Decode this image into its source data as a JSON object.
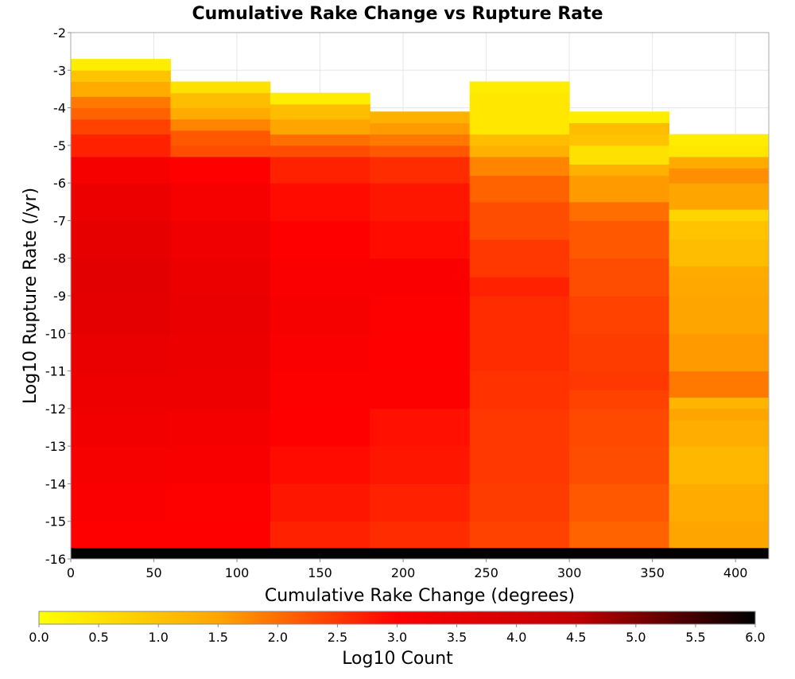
{
  "chart_data": {
    "type": "heatmap",
    "title": "Cumulative Rake Change vs Rupture Rate",
    "xlabel": "Cumulative Rake Change (degrees)",
    "ylabel": "Log10 Rupture Rate (/yr)",
    "xlim": [
      0,
      420
    ],
    "ylim": [
      -16,
      -2
    ],
    "x_ticks": [
      "0",
      "50",
      "100",
      "150",
      "200",
      "250",
      "300",
      "350",
      "400"
    ],
    "y_ticks": [
      "-2",
      "-3",
      "-4",
      "-5",
      "-6",
      "-7",
      "-8",
      "-9",
      "-10",
      "-11",
      "-12",
      "-13",
      "-14",
      "-15",
      "-16"
    ],
    "grid": true,
    "x_bin_width": 60,
    "y_bin_height": 0.3,
    "columns": [
      {
        "x_start": 0,
        "cells": [
          [
            -16.0,
            6.0
          ],
          [
            -15.7,
            3.0
          ],
          [
            -15.0,
            3.1
          ],
          [
            -14.0,
            3.2
          ],
          [
            -13.0,
            3.3
          ],
          [
            -12.0,
            3.4
          ],
          [
            -11.0,
            3.5
          ],
          [
            -10.0,
            3.65
          ],
          [
            -9.0,
            3.7
          ],
          [
            -8.0,
            3.6
          ],
          [
            -7.0,
            3.45
          ],
          [
            -6.0,
            3.2
          ],
          [
            -5.3,
            2.7
          ],
          [
            -4.7,
            2.4
          ],
          [
            -4.3,
            2.1
          ],
          [
            -4.0,
            1.9
          ],
          [
            -3.7,
            1.4
          ],
          [
            -3.3,
            1.0
          ],
          [
            -3.0,
            0.3
          ]
        ]
      },
      {
        "x_start": 60,
        "cells": [
          [
            -16.0,
            6.0
          ],
          [
            -15.7,
            3.0
          ],
          [
            -15.0,
            3.05
          ],
          [
            -14.0,
            3.15
          ],
          [
            -13.0,
            3.25
          ],
          [
            -12.0,
            3.4
          ],
          [
            -11.0,
            3.45
          ],
          [
            -10.0,
            3.5
          ],
          [
            -9.0,
            3.45
          ],
          [
            -8.0,
            3.35
          ],
          [
            -7.0,
            3.2
          ],
          [
            -6.0,
            3.0
          ],
          [
            -5.3,
            2.3
          ],
          [
            -5.0,
            2.2
          ],
          [
            -4.6,
            1.8
          ],
          [
            -4.3,
            1.4
          ],
          [
            -4.0,
            1.1
          ],
          [
            -3.6,
            0.5
          ]
        ]
      },
      {
        "x_start": 120,
        "cells": [
          [
            -16.0,
            6.0
          ],
          [
            -15.7,
            2.7
          ],
          [
            -15.0,
            2.8
          ],
          [
            -14.0,
            2.9
          ],
          [
            -13.0,
            3.0
          ],
          [
            -12.0,
            3.05
          ],
          [
            -11.0,
            3.1
          ],
          [
            -10.0,
            3.2
          ],
          [
            -9.0,
            3.1
          ],
          [
            -8.0,
            3.0
          ],
          [
            -7.0,
            2.9
          ],
          [
            -6.0,
            2.7
          ],
          [
            -5.3,
            2.3
          ],
          [
            -5.0,
            2.0
          ],
          [
            -4.7,
            1.5
          ],
          [
            -4.3,
            1.1
          ],
          [
            -3.9,
            0.3
          ]
        ]
      },
      {
        "x_start": 180,
        "cells": [
          [
            -16.0,
            6.0
          ],
          [
            -15.7,
            2.6
          ],
          [
            -15.0,
            2.7
          ],
          [
            -14.0,
            2.8
          ],
          [
            -13.0,
            2.85
          ],
          [
            -12.0,
            3.05
          ],
          [
            -11.0,
            3.0
          ],
          [
            -10.0,
            3.05
          ],
          [
            -9.0,
            3.1
          ],
          [
            -8.0,
            2.9
          ],
          [
            -7.0,
            2.8
          ],
          [
            -6.0,
            2.6
          ],
          [
            -5.3,
            2.2
          ],
          [
            -5.0,
            1.9
          ],
          [
            -4.7,
            1.6
          ],
          [
            -4.4,
            1.3
          ]
        ]
      },
      {
        "x_start": 240,
        "cells": [
          [
            -16.0,
            6.0
          ],
          [
            -15.7,
            2.4
          ],
          [
            -15.0,
            2.45
          ],
          [
            -14.0,
            2.5
          ],
          [
            -13.0,
            2.5
          ],
          [
            -12.0,
            2.55
          ],
          [
            -11.0,
            2.6
          ],
          [
            -10.0,
            2.6
          ],
          [
            -9.0,
            2.7
          ],
          [
            -8.5,
            2.5
          ],
          [
            -7.5,
            2.3
          ],
          [
            -6.5,
            2.1
          ],
          [
            -5.8,
            1.8
          ],
          [
            -5.3,
            1.3
          ],
          [
            -5.0,
            1.1
          ],
          [
            -4.7,
            0.4
          ],
          [
            -3.6,
            0.3
          ]
        ]
      },
      {
        "x_start": 300,
        "cells": [
          [
            -16.0,
            6.0
          ],
          [
            -15.7,
            2.1
          ],
          [
            -15.0,
            2.2
          ],
          [
            -14.0,
            2.3
          ],
          [
            -13.0,
            2.35
          ],
          [
            -12.0,
            2.4
          ],
          [
            -11.5,
            2.5
          ],
          [
            -11.0,
            2.45
          ],
          [
            -10.0,
            2.4
          ],
          [
            -9.0,
            2.3
          ],
          [
            -8.0,
            2.2
          ],
          [
            -7.0,
            2.0
          ],
          [
            -6.5,
            1.6
          ],
          [
            -5.8,
            1.3
          ],
          [
            -5.5,
            0.5
          ],
          [
            -5.0,
            1.0
          ],
          [
            -4.7,
            1.1
          ],
          [
            -4.4,
            0.3
          ]
        ]
      },
      {
        "x_start": 360,
        "cells": [
          [
            -16.0,
            6.0
          ],
          [
            -15.7,
            1.5
          ],
          [
            -15.0,
            1.4
          ],
          [
            -14.0,
            1.2
          ],
          [
            -13.0,
            1.35
          ],
          [
            -12.3,
            1.5
          ],
          [
            -12.0,
            1.25
          ],
          [
            -11.7,
            1.9
          ],
          [
            -11.0,
            1.6
          ],
          [
            -10.0,
            1.5
          ],
          [
            -9.0,
            1.45
          ],
          [
            -8.5,
            1.4
          ],
          [
            -8.2,
            1.1
          ],
          [
            -7.5,
            1.0
          ],
          [
            -7.0,
            0.7
          ],
          [
            -6.7,
            1.5
          ],
          [
            -6.0,
            1.7
          ],
          [
            -5.6,
            1.4
          ],
          [
            -5.3,
            0.4
          ],
          [
            -5.0,
            0.3
          ]
        ]
      }
    ],
    "colorbar": {
      "label": "Log10 Count",
      "range": [
        0,
        6
      ],
      "ticks": [
        "0.0",
        "0.5",
        "1.0",
        "1.5",
        "2.0",
        "2.5",
        "3.0",
        "3.5",
        "4.0",
        "4.5",
        "5.0",
        "5.5",
        "6.0"
      ],
      "colors": [
        "#ffff00",
        "#ffa500",
        "#ff0000",
        "#c00000",
        "#000000"
      ]
    }
  }
}
